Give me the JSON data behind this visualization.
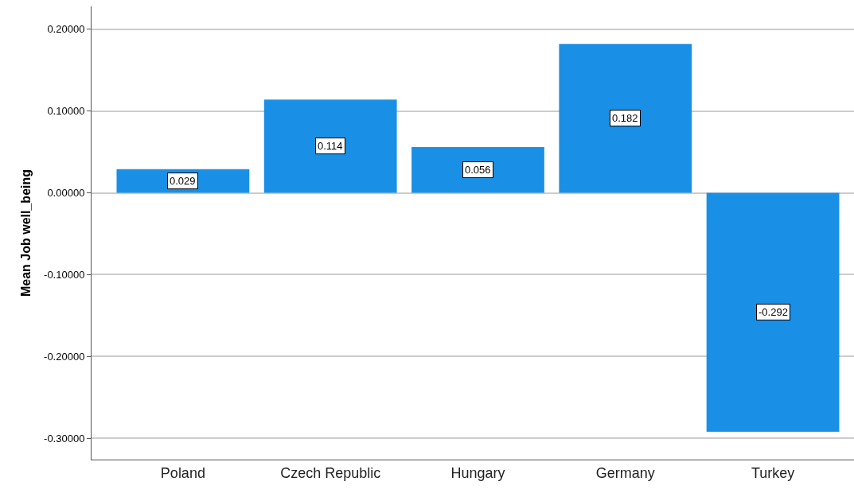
{
  "chart_data": {
    "type": "bar",
    "ylabel": "Mean Job well_being",
    "categories": [
      "Poland",
      "Czech Republic",
      "Hungary",
      "Germany",
      "Turkey"
    ],
    "values": [
      0.029,
      0.114,
      0.056,
      0.182,
      -0.292
    ],
    "color": "#1990e6",
    "ylim": [
      -0.326,
      0.228
    ],
    "yticks": [
      {
        "value": -0.3,
        "label": "-0.30000"
      },
      {
        "value": -0.2,
        "label": "-0.20000"
      },
      {
        "value": -0.1,
        "label": "-0.10000"
      },
      {
        "value": 0,
        "label": "0.00000"
      },
      {
        "value": 0.1,
        "label": "0.10000"
      },
      {
        "value": 0.2,
        "label": "0.20000"
      }
    ],
    "grid": "y",
    "data_labels": true
  }
}
